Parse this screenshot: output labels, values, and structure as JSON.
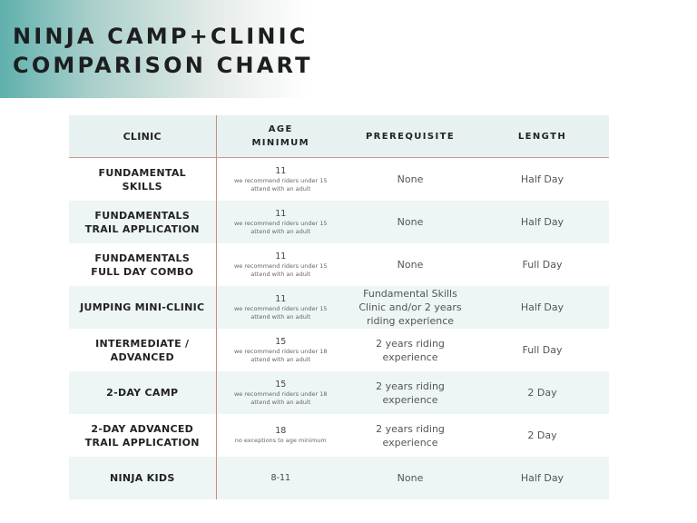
{
  "header": {
    "title": "NINJA CAMP+CLINIC\nCOMPARISON CHART",
    "gradient_colors": [
      "#5fb0ad",
      "#ffffff"
    ]
  },
  "table": {
    "columns": [
      "CLINIC",
      "AGE MINIMUM",
      "PREREQUISITE",
      "LENGTH"
    ],
    "rows": [
      {
        "clinic": "FUNDAMENTAL SKILLS",
        "age": "11",
        "age_note": "we recommend riders under 15 attend with an adult",
        "prerequisite": "None",
        "length": "Half Day"
      },
      {
        "clinic": "FUNDAMENTALS TRAIL APPLICATION",
        "age": "11",
        "age_note": "we recommend riders under 15 attend with an adult",
        "prerequisite": "None",
        "length": "Half Day"
      },
      {
        "clinic": "FUNDAMENTALS FULL DAY COMBO",
        "age": "11",
        "age_note": "we recommend riders under 15 attend with an adult",
        "prerequisite": "None",
        "length": "Full Day"
      },
      {
        "clinic": "JUMPING MINI-CLINIC",
        "age": "11",
        "age_note": "we recommend riders under 15 attend with an adult",
        "prerequisite": "Fundamental Skills Clinic and/or 2 years riding experience",
        "length": "Half Day"
      },
      {
        "clinic": "INTERMEDIATE / ADVANCED",
        "age": "15",
        "age_note": "we recommend riders under 18 attend with an adult",
        "prerequisite": "2 years riding experience",
        "length": "Full Day"
      },
      {
        "clinic": "2-DAY CAMP",
        "age": "15",
        "age_note": "we recommend riders under 18 attend with an adult",
        "prerequisite": "2 years riding experience",
        "length": "2 Day"
      },
      {
        "clinic": "2-DAY ADVANCED TRAIL APPLICATION",
        "age": "18",
        "age_note": "no exceptions to age minimum",
        "prerequisite": "2 years riding experience",
        "length": "2 Day"
      },
      {
        "clinic": "NINJA KIDS",
        "age": "8-11",
        "age_note": "",
        "prerequisite": "None",
        "length": "Half Day"
      }
    ]
  }
}
